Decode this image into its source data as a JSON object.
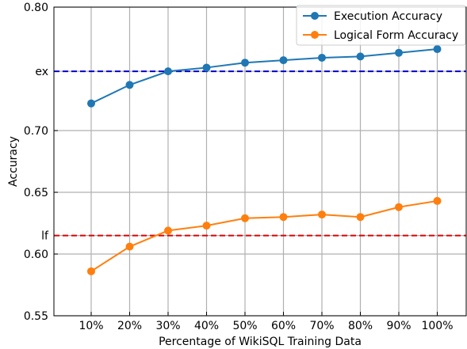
{
  "chart_data": {
    "type": "line",
    "title": "",
    "xlabel": "Percentage of WikiSQL Training Data",
    "ylabel": "Accuracy",
    "categories": [
      "10%",
      "20%",
      "30%",
      "40%",
      "50%",
      "60%",
      "70%",
      "80%",
      "90%",
      "100%"
    ],
    "ylim": [
      0.55,
      0.8
    ],
    "yticks": [
      {
        "value": 0.55,
        "label": "0.55"
      },
      {
        "value": 0.6,
        "label": "0.60"
      },
      {
        "value": 0.615,
        "label": "lf"
      },
      {
        "value": 0.65,
        "label": "0.65"
      },
      {
        "value": 0.7,
        "label": "0.70"
      },
      {
        "value": 0.748,
        "label": "ex"
      },
      {
        "value": 0.8,
        "label": "0.80"
      }
    ],
    "grid": true,
    "legend_position": "top-right",
    "series": [
      {
        "name": "Execution Accuracy",
        "color": "#1f77b4",
        "values": [
          0.722,
          0.737,
          0.748,
          0.751,
          0.755,
          0.757,
          0.759,
          0.76,
          0.763,
          0.766
        ]
      },
      {
        "name": "Logical Form Accuracy",
        "color": "#ff7f0e",
        "values": [
          0.586,
          0.606,
          0.619,
          0.623,
          0.629,
          0.63,
          0.632,
          0.63,
          0.638,
          0.643
        ]
      }
    ],
    "reference_lines": [
      {
        "label": "ex",
        "value": 0.748,
        "color": "#0000cc",
        "style": "dashed"
      },
      {
        "label": "lf",
        "value": 0.615,
        "color": "#dd0000",
        "style": "dashed"
      }
    ]
  }
}
